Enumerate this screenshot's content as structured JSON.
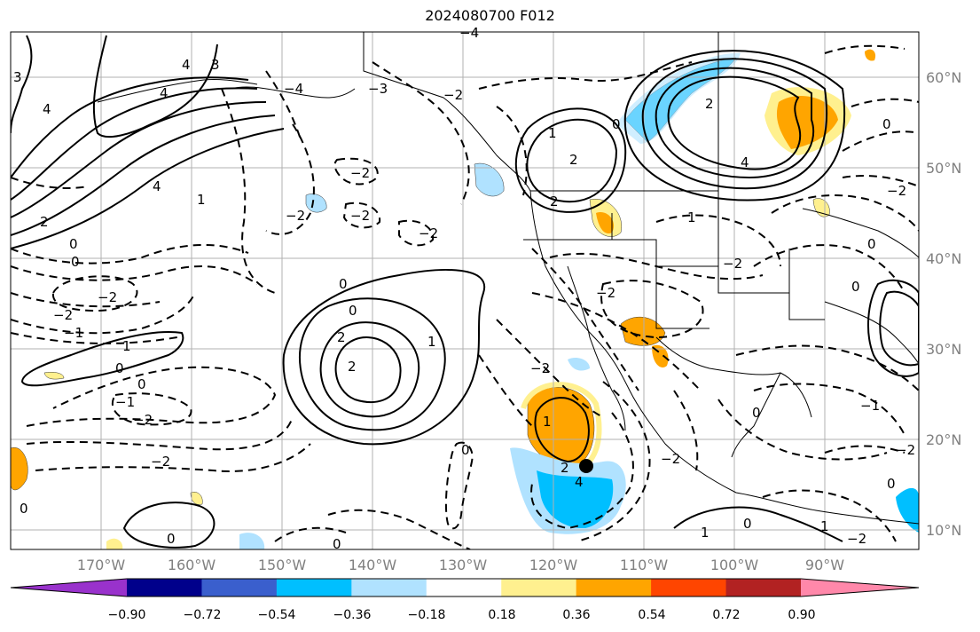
{
  "title": "2024080700 F012",
  "lat_labels": [
    "60°N",
    "50°N",
    "40°N",
    "30°N",
    "20°N",
    "10°N"
  ],
  "lon_labels": [
    "170°W",
    "160°W",
    "150°W",
    "140°W",
    "130°W",
    "120°W",
    "110°W",
    "100°W",
    "90°W"
  ],
  "colorbar": {
    "ticks": [
      "−0.90",
      "−0.72",
      "−0.54",
      "−0.36",
      "−0.18",
      "0.18",
      "0.36",
      "0.54",
      "0.72",
      "0.90"
    ],
    "colors": [
      "#9932cc",
      "#00008b",
      "#3a5fcd",
      "#00bfff",
      "#b0e2ff",
      "#ffffff",
      "#fff08f",
      "#ffa500",
      "#ff4500",
      "#b22222",
      "#ff88aa"
    ]
  },
  "contour_labels": [
    "4",
    "3",
    "2",
    "1",
    "0",
    "−1",
    "−2",
    "−3",
    "−4"
  ]
}
